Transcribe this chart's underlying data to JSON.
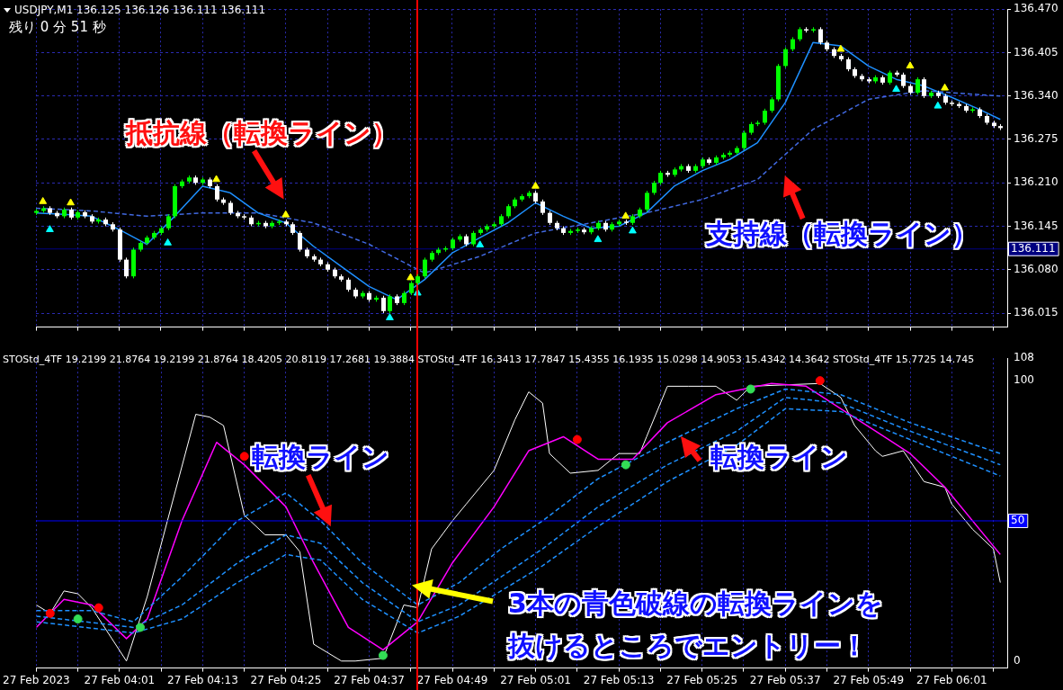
{
  "chart_data": [
    {
      "type": "candlestick",
      "title": "USDJPY,M1  136.125 136.126 136.111 136.111",
      "subtitle": "残り  0 分  51 秒",
      "annotations": [
        "抵抗線（転換ライン）",
        "支持線（転換ライン）"
      ],
      "x": [
        "2023-02-27T03:49",
        "2023-02-27T03:50",
        "2023-02-27T03:51",
        "2023-02-27T03:52",
        "2023-02-27T03:53",
        "2023-02-27T03:54",
        "2023-02-27T03:55",
        "2023-02-27T03:56",
        "2023-02-27T03:57",
        "2023-02-27T03:58",
        "2023-02-27T03:59",
        "2023-02-27T04:00",
        "2023-02-27T04:01",
        "2023-02-27T04:02",
        "2023-02-27T04:03",
        "2023-02-27T04:04",
        "2023-02-27T04:05",
        "2023-02-27T04:06",
        "2023-02-27T04:07",
        "2023-02-27T04:08",
        "2023-02-27T04:09",
        "2023-02-27T04:10",
        "2023-02-27T04:11",
        "2023-02-27T04:12",
        "2023-02-27T04:13",
        "2023-02-27T04:14",
        "2023-02-27T04:15",
        "2023-02-27T04:16",
        "2023-02-27T04:17",
        "2023-02-27T04:18",
        "2023-02-27T04:19",
        "2023-02-27T04:20",
        "2023-02-27T04:21",
        "2023-02-27T04:22",
        "2023-02-27T04:23",
        "2023-02-27T04:24",
        "2023-02-27T04:25",
        "2023-02-27T04:26",
        "2023-02-27T04:27",
        "2023-02-27T04:28",
        "2023-02-27T04:29",
        "2023-02-27T04:30",
        "2023-02-27T04:31",
        "2023-02-27T04:32",
        "2023-02-27T04:33",
        "2023-02-27T04:34",
        "2023-02-27T04:35",
        "2023-02-27T04:36",
        "2023-02-27T04:37",
        "2023-02-27T04:38",
        "2023-02-27T04:39",
        "2023-02-27T04:40",
        "2023-02-27T04:41",
        "2023-02-27T04:42",
        "2023-02-27T04:43",
        "2023-02-27T04:44",
        "2023-02-27T04:45",
        "2023-02-27T04:46",
        "2023-02-27T04:47",
        "2023-02-27T04:48",
        "2023-02-27T04:49",
        "2023-02-27T04:50",
        "2023-02-27T04:51",
        "2023-02-27T04:52",
        "2023-02-27T04:53",
        "2023-02-27T04:54",
        "2023-02-27T04:55",
        "2023-02-27T04:56",
        "2023-02-27T04:57",
        "2023-02-27T04:58",
        "2023-02-27T04:59",
        "2023-02-27T05:00",
        "2023-02-27T05:01",
        "2023-02-27T05:02",
        "2023-02-27T05:03",
        "2023-02-27T05:04",
        "2023-02-27T05:05",
        "2023-02-27T05:06",
        "2023-02-27T05:07",
        "2023-02-27T05:08",
        "2023-02-27T05:09",
        "2023-02-27T05:10",
        "2023-02-27T05:11",
        "2023-02-27T05:12",
        "2023-02-27T05:13",
        "2023-02-27T05:14",
        "2023-02-27T05:15",
        "2023-02-27T05:16",
        "2023-02-27T05:17",
        "2023-02-27T05:18",
        "2023-02-27T05:19",
        "2023-02-27T05:20",
        "2023-02-27T05:21",
        "2023-02-27T05:22",
        "2023-02-27T05:23",
        "2023-02-27T05:24",
        "2023-02-27T05:25",
        "2023-02-27T05:26",
        "2023-02-27T05:27",
        "2023-02-27T05:28",
        "2023-02-27T05:29",
        "2023-02-27T05:30",
        "2023-02-27T05:31",
        "2023-02-27T05:32",
        "2023-02-27T05:33",
        "2023-02-27T05:34",
        "2023-02-27T05:35",
        "2023-02-27T05:36",
        "2023-02-27T05:37",
        "2023-02-27T05:38",
        "2023-02-27T05:39",
        "2023-02-27T05:40",
        "2023-02-27T05:41",
        "2023-02-27T05:42",
        "2023-02-27T05:43",
        "2023-02-27T05:44",
        "2023-02-27T05:45",
        "2023-02-27T05:46",
        "2023-02-27T05:47",
        "2023-02-27T05:48",
        "2023-02-27T05:49",
        "2023-02-27T05:50",
        "2023-02-27T05:51",
        "2023-02-27T05:52",
        "2023-02-27T05:53",
        "2023-02-27T05:54",
        "2023-02-27T05:55",
        "2023-02-27T05:56",
        "2023-02-27T05:57",
        "2023-02-27T05:58",
        "2023-02-27T05:59",
        "2023-02-27T06:00",
        "2023-02-27T06:01",
        "2023-02-27T06:02",
        "2023-02-27T06:03",
        "2023-02-27T06:04",
        "2023-02-27T06:05",
        "2023-02-27T06:06",
        "2023-02-27T06:07",
        "2023-02-27T06:08"
      ],
      "ohlc": [
        [
          136.165,
          136.171,
          136.162,
          136.168
        ],
        [
          136.168,
          136.175,
          136.165,
          136.172
        ],
        [
          136.172,
          136.175,
          136.162,
          136.165
        ],
        [
          136.165,
          136.168,
          136.157,
          136.16
        ],
        [
          136.16,
          136.173,
          136.157,
          136.17
        ],
        [
          136.17,
          136.173,
          136.155,
          136.158
        ],
        [
          136.158,
          136.169,
          136.155,
          136.166
        ],
        [
          136.166,
          136.169,
          136.157,
          136.16
        ],
        [
          136.16,
          136.163,
          136.149,
          136.152
        ],
        [
          136.152,
          136.158,
          136.149,
          136.155
        ],
        [
          136.155,
          136.158,
          136.145,
          136.148
        ],
        [
          136.148,
          136.151,
          136.137,
          136.14
        ],
        [
          136.14,
          136.143,
          136.092,
          136.095
        ],
        [
          136.095,
          136.098,
          136.067,
          136.07
        ],
        [
          136.07,
          136.113,
          136.067,
          136.11
        ],
        [
          136.11,
          136.123,
          136.107,
          136.12
        ],
        [
          136.12,
          136.131,
          136.117,
          136.128
        ],
        [
          136.128,
          136.138,
          136.125,
          136.135
        ],
        [
          136.135,
          136.145,
          136.132,
          136.142
        ],
        [
          136.142,
          136.163,
          136.139,
          136.16
        ],
        [
          136.16,
          136.208,
          136.157,
          136.205
        ],
        [
          136.205,
          136.215,
          136.202,
          136.212
        ],
        [
          136.212,
          136.221,
          136.209,
          136.218
        ],
        [
          136.218,
          136.221,
          136.207,
          136.21
        ],
        [
          136.21,
          136.218,
          136.207,
          136.215
        ],
        [
          136.215,
          136.218,
          136.202,
          136.205
        ],
        [
          136.205,
          136.208,
          136.182,
          136.185
        ],
        [
          136.185,
          136.188,
          136.177,
          136.18
        ],
        [
          136.18,
          136.183,
          136.162,
          136.165
        ],
        [
          136.165,
          136.168,
          136.157,
          136.16
        ],
        [
          136.16,
          136.163,
          136.155,
          136.158
        ],
        [
          136.158,
          136.161,
          136.145,
          136.148
        ],
        [
          136.148,
          136.153,
          136.145,
          136.15
        ],
        [
          136.15,
          136.153,
          136.142,
          136.145
        ],
        [
          136.145,
          136.153,
          136.142,
          136.15
        ],
        [
          136.15,
          136.155,
          136.147,
          136.152
        ],
        [
          136.152,
          136.155,
          136.145,
          136.148
        ],
        [
          136.148,
          136.151,
          136.132,
          136.135
        ],
        [
          136.135,
          136.138,
          136.107,
          136.11
        ],
        [
          136.11,
          136.113,
          136.097,
          136.1
        ],
        [
          136.1,
          136.103,
          136.092,
          136.095
        ],
        [
          136.095,
          136.098,
          136.085,
          136.088
        ],
        [
          136.088,
          136.091,
          136.077,
          136.08
        ],
        [
          136.08,
          136.083,
          136.067,
          136.07
        ],
        [
          136.07,
          136.073,
          136.062,
          136.065
        ],
        [
          136.065,
          136.068,
          136.047,
          136.05
        ],
        [
          136.05,
          136.053,
          136.037,
          136.04
        ],
        [
          136.04,
          136.048,
          136.037,
          136.045
        ],
        [
          136.045,
          136.048,
          136.032,
          136.035
        ],
        [
          136.035,
          136.041,
          136.032,
          136.038
        ],
        [
          136.038,
          136.041,
          136.015,
          136.018
        ],
        [
          136.018,
          136.043,
          136.015,
          136.04
        ],
        [
          136.04,
          136.043,
          136.027,
          136.03
        ],
        [
          136.03,
          136.048,
          136.027,
          136.045
        ],
        [
          136.045,
          136.063,
          136.042,
          136.06
        ],
        [
          136.06,
          136.073,
          136.057,
          136.07
        ],
        [
          136.07,
          136.098,
          136.067,
          136.095
        ],
        [
          136.095,
          136.108,
          136.092,
          136.105
        ],
        [
          136.105,
          136.113,
          136.102,
          136.11
        ],
        [
          136.11,
          136.115,
          136.107,
          136.112
        ],
        [
          136.112,
          136.128,
          136.109,
          136.125
        ],
        [
          136.125,
          136.133,
          136.122,
          136.13
        ],
        [
          136.13,
          136.133,
          136.115,
          136.118
        ],
        [
          136.118,
          136.138,
          136.115,
          136.135
        ],
        [
          136.135,
          136.143,
          136.132,
          136.14
        ],
        [
          136.14,
          136.148,
          136.137,
          136.145
        ],
        [
          136.145,
          136.151,
          136.142,
          136.148
        ],
        [
          136.148,
          136.163,
          136.145,
          136.16
        ],
        [
          136.16,
          136.178,
          136.157,
          136.175
        ],
        [
          136.175,
          136.188,
          136.172,
          136.185
        ],
        [
          136.185,
          136.193,
          136.182,
          136.19
        ],
        [
          136.19,
          136.198,
          136.187,
          136.195
        ],
        [
          136.195,
          136.198,
          136.179,
          136.182
        ],
        [
          136.182,
          136.185,
          136.162,
          136.165
        ],
        [
          136.165,
          136.168,
          136.147,
          136.15
        ],
        [
          136.15,
          136.153,
          136.139,
          136.142
        ],
        [
          136.142,
          136.145,
          136.132,
          136.135
        ],
        [
          136.135,
          136.141,
          136.132,
          136.138
        ],
        [
          136.138,
          136.143,
          136.135,
          136.14
        ],
        [
          136.14,
          136.143,
          136.133,
          136.136
        ],
        [
          136.136,
          136.145,
          136.133,
          136.142
        ],
        [
          136.142,
          136.153,
          136.139,
          136.15
        ],
        [
          136.15,
          136.153,
          136.137,
          136.14
        ],
        [
          136.14,
          136.151,
          136.137,
          136.148
        ],
        [
          136.148,
          136.155,
          136.145,
          136.152
        ],
        [
          136.152,
          136.155,
          136.147,
          136.15
        ],
        [
          136.15,
          136.163,
          136.147,
          136.16
        ],
        [
          136.16,
          136.173,
          136.157,
          136.17
        ],
        [
          136.17,
          136.198,
          136.167,
          136.195
        ],
        [
          136.195,
          136.213,
          136.192,
          136.21
        ],
        [
          136.21,
          136.228,
          136.207,
          136.225
        ],
        [
          136.225,
          136.228,
          136.219,
          136.222
        ],
        [
          136.222,
          136.233,
          136.219,
          136.23
        ],
        [
          136.23,
          136.238,
          136.227,
          136.235
        ],
        [
          136.235,
          136.238,
          136.225,
          136.228
        ],
        [
          136.228,
          136.238,
          136.225,
          136.235
        ],
        [
          136.235,
          136.248,
          136.232,
          136.245
        ],
        [
          136.245,
          136.248,
          136.237,
          136.24
        ],
        [
          136.24,
          136.251,
          136.237,
          136.248
        ],
        [
          136.248,
          136.255,
          136.245,
          136.252
        ],
        [
          136.252,
          136.258,
          136.249,
          136.255
        ],
        [
          136.255,
          136.265,
          136.252,
          136.262
        ],
        [
          136.262,
          136.288,
          136.259,
          136.285
        ],
        [
          136.285,
          136.301,
          136.282,
          136.298
        ],
        [
          136.298,
          136.303,
          136.295,
          136.3
        ],
        [
          136.3,
          136.321,
          136.297,
          136.318
        ],
        [
          136.318,
          136.338,
          136.315,
          136.335
        ],
        [
          136.335,
          136.388,
          136.332,
          136.385
        ],
        [
          136.385,
          136.413,
          136.382,
          136.41
        ],
        [
          136.41,
          136.428,
          136.407,
          136.425
        ],
        [
          136.425,
          136.443,
          136.422,
          136.44
        ],
        [
          136.44,
          136.443,
          136.435,
          136.438
        ],
        [
          136.438,
          136.443,
          136.435,
          136.44
        ],
        [
          136.44,
          136.443,
          136.417,
          136.42
        ],
        [
          136.42,
          136.423,
          136.407,
          136.41
        ],
        [
          136.41,
          136.413,
          136.397,
          136.4
        ],
        [
          136.4,
          136.403,
          136.392,
          136.395
        ],
        [
          136.395,
          136.398,
          136.377,
          136.38
        ],
        [
          136.38,
          136.383,
          136.367,
          136.37
        ],
        [
          136.37,
          136.373,
          136.362,
          136.365
        ],
        [
          136.365,
          136.368,
          136.359,
          136.362
        ],
        [
          136.362,
          136.371,
          136.359,
          136.368
        ],
        [
          136.368,
          136.371,
          136.357,
          136.36
        ],
        [
          136.36,
          136.378,
          136.357,
          136.375
        ],
        [
          136.375,
          136.378,
          136.369,
          136.372
        ],
        [
          136.372,
          136.375,
          136.352,
          136.355
        ],
        [
          136.355,
          136.358,
          136.342,
          136.345
        ],
        [
          136.345,
          136.368,
          136.342,
          136.365
        ],
        [
          136.365,
          136.368,
          136.337,
          136.34
        ],
        [
          136.34,
          136.348,
          136.337,
          136.345
        ],
        [
          136.345,
          136.348,
          136.337,
          136.34
        ],
        [
          136.34,
          136.343,
          136.327,
          136.33
        ],
        [
          136.33,
          136.333,
          136.325,
          136.328
        ],
        [
          136.328,
          136.331,
          136.322,
          136.325
        ],
        [
          136.325,
          136.328,
          136.315,
          136.318
        ],
        [
          136.318,
          136.323,
          136.315,
          136.32
        ],
        [
          136.32,
          136.323,
          136.307,
          136.31
        ],
        [
          136.31,
          136.313,
          136.297,
          136.3
        ],
        [
          136.3,
          136.303,
          136.292,
          136.295
        ],
        [
          136.295,
          136.298,
          136.289,
          136.292
        ]
      ],
      "colors": [
        "#00ff00",
        "#00ff00",
        "#ffffff",
        "#ffffff",
        "#00ff00",
        "#ffffff",
        "#00ff00",
        "#ffffff",
        "#ffffff",
        "#00ff00",
        "#ffffff",
        "#ffffff",
        "#ffffff",
        "#ffffff",
        "#00ff00",
        "#00ff00",
        "#00ff00",
        "#00ff00",
        "#00ff00",
        "#00ff00",
        "#00ff00",
        "#00ff00",
        "#00ff00",
        "#ffffff",
        "#00ff00",
        "#ffffff",
        "#ffffff",
        "#ffffff",
        "#ffffff",
        "#ffffff",
        "#ffffff",
        "#ffffff",
        "#00ff00",
        "#ffffff",
        "#00ff00",
        "#00ff00",
        "#ffffff",
        "#ffffff",
        "#ffffff",
        "#ffffff",
        "#ffffff",
        "#ffffff",
        "#ffffff",
        "#ffffff",
        "#ffffff",
        "#ffffff",
        "#ffffff",
        "#00ff00",
        "#ffffff",
        "#00ff00",
        "#ffffff",
        "#00ff00",
        "#ffffff",
        "#00ff00",
        "#00ff00",
        "#00ff00",
        "#00ff00",
        "#00ff00",
        "#00ff00",
        "#00ff00",
        "#00ff00",
        "#00ff00",
        "#ffffff",
        "#00ff00",
        "#00ff00",
        "#00ff00",
        "#00ff00",
        "#00ff00",
        "#00ff00",
        "#00ff00",
        "#00ff00",
        "#00ff00",
        "#ffffff",
        "#ffffff",
        "#ffffff",
        "#ffffff",
        "#ffffff",
        "#00ff00",
        "#00ff00",
        "#ffffff",
        "#00ff00",
        "#00ff00",
        "#ffffff",
        "#00ff00",
        "#00ff00",
        "#ffffff",
        "#00ff00",
        "#00ff00",
        "#00ff00",
        "#00ff00",
        "#00ff00",
        "#ffffff",
        "#00ff00",
        "#00ff00",
        "#ffffff",
        "#00ff00",
        "#00ff00",
        "#ffffff",
        "#00ff00",
        "#00ff00",
        "#00ff00",
        "#00ff00",
        "#00ff00",
        "#00ff00",
        "#00ff00",
        "#00ff00",
        "#00ff00",
        "#00ff00",
        "#00ff00",
        "#00ff00",
        "#00ff00",
        "#ffffff",
        "#00ff00",
        "#ffffff",
        "#ffffff",
        "#ffffff",
        "#ffffff",
        "#ffffff",
        "#ffffff",
        "#ffffff",
        "#ffffff",
        "#00ff00",
        "#ffffff",
        "#00ff00",
        "#ffffff",
        "#ffffff",
        "#ffffff",
        "#00ff00",
        "#ffffff",
        "#00ff00",
        "#ffffff",
        "#ffffff",
        "#ffffff",
        "#ffffff",
        "#ffffff",
        "#00ff00",
        "#ffffff",
        "#ffffff",
        "#ffffff",
        "#ffffff"
      ],
      "series": [
        {
          "type": "line",
          "color": "#1e90ff",
          "x": [
            "2023-02-27T03:49",
            "2023-02-27T03:53",
            "2023-02-27T03:57",
            "2023-02-27T04:01",
            "2023-02-27T04:05",
            "2023-02-27T04:09",
            "2023-02-27T04:13",
            "2023-02-27T04:17",
            "2023-02-27T04:21",
            "2023-02-27T04:25",
            "2023-02-27T04:29",
            "2023-02-27T04:33",
            "2023-02-27T04:37",
            "2023-02-27T04:41",
            "2023-02-27T04:45",
            "2023-02-27T04:49",
            "2023-02-27T04:53",
            "2023-02-27T04:57",
            "2023-02-27T05:01",
            "2023-02-27T05:05",
            "2023-02-27T05:09",
            "2023-02-27T05:13",
            "2023-02-27T05:17",
            "2023-02-27T05:21",
            "2023-02-27T05:25",
            "2023-02-27T05:29",
            "2023-02-27T05:33",
            "2023-02-27T05:37",
            "2023-02-27T05:41",
            "2023-02-27T05:45",
            "2023-02-27T05:49",
            "2023-02-27T05:53",
            "2023-02-27T05:57",
            "2023-02-27T06:01",
            "2023-02-27T06:05",
            "2023-02-27T06:08"
          ],
          "values": [
            136.165,
            136.163,
            136.16,
            136.14,
            136.118,
            136.16,
            136.205,
            136.195,
            136.165,
            136.15,
            136.115,
            136.085,
            136.055,
            136.035,
            136.065,
            136.105,
            136.128,
            136.15,
            136.18,
            136.16,
            136.142,
            136.145,
            136.165,
            136.205,
            136.228,
            136.245,
            136.27,
            136.33,
            136.42,
            136.415,
            136.385,
            136.365,
            136.355,
            136.338,
            136.32,
            136.305
          ]
        },
        {
          "type": "line",
          "color": "#4169e1",
          "line_style": "dashed",
          "x": [
            "2023-02-27T03:49",
            "2023-02-27T03:57",
            "2023-02-27T04:05",
            "2023-02-27T04:13",
            "2023-02-27T04:21",
            "2023-02-27T04:29",
            "2023-02-27T04:37",
            "2023-02-27T04:45",
            "2023-02-27T04:53",
            "2023-02-27T05:01",
            "2023-02-27T05:09",
            "2023-02-27T05:17",
            "2023-02-27T05:25",
            "2023-02-27T05:33",
            "2023-02-27T05:41",
            "2023-02-27T05:49",
            "2023-02-27T05:57",
            "2023-02-27T06:05",
            "2023-02-27T06:08"
          ],
          "values": [
            136.172,
            136.168,
            136.16,
            136.165,
            136.165,
            136.15,
            136.118,
            136.075,
            136.1,
            136.135,
            136.15,
            136.165,
            136.185,
            136.215,
            136.29,
            136.335,
            136.348,
            136.342,
            136.34
          ]
        },
        {
          "type": "scatter",
          "color": "#ffff00",
          "marker": "triangle",
          "x": [
            "2023-02-27T03:50",
            "2023-02-27T03:54",
            "2023-02-27T04:15",
            "2023-02-27T04:25",
            "2023-02-27T04:43",
            "2023-02-27T05:01",
            "2023-02-27T05:14",
            "2023-02-27T05:45",
            "2023-02-27T05:55",
            "2023-02-27T06:00"
          ],
          "values": [
            136.182,
            136.18,
            136.215,
            136.162,
            136.068,
            136.205,
            136.16,
            136.41,
            136.385,
            136.352
          ]
        },
        {
          "type": "scatter",
          "color": "#00ffff",
          "marker": "triangle",
          "x": [
            "2023-02-27T03:51",
            "2023-02-27T04:08",
            "2023-02-27T04:40",
            "2023-02-27T04:44",
            "2023-02-27T04:53",
            "2023-02-27T05:10",
            "2023-02-27T05:15",
            "2023-02-27T05:53",
            "2023-02-27T05:59"
          ],
          "values": [
            136.14,
            136.12,
            136.008,
            136.045,
            136.117,
            136.125,
            136.138,
            136.35,
            136.325
          ]
        }
      ],
      "xlim": [
        "2023-02-27T03:49",
        "2023-02-27T06:09"
      ],
      "xticks": [
        {
          "value": "2023-02-27T03:49",
          "label": null
        },
        {
          "value": "2023-02-27T03:55",
          "label": null
        },
        {
          "value": "2023-02-27T04:01",
          "label": null
        },
        {
          "value": "2023-02-27T04:07",
          "label": null
        },
        {
          "value": "2023-02-27T04:13",
          "label": null
        },
        {
          "value": "2023-02-27T04:19",
          "label": null
        },
        {
          "value": "2023-02-27T04:25",
          "label": null
        },
        {
          "value": "2023-02-27T04:31",
          "label": null
        },
        {
          "value": "2023-02-27T04:37",
          "label": null
        },
        {
          "value": "2023-02-27T04:43",
          "label": null
        },
        {
          "value": "2023-02-27T04:49",
          "label": null
        },
        {
          "value": "2023-02-27T04:55",
          "label": null
        },
        {
          "value": "2023-02-27T05:01",
          "label": null
        },
        {
          "value": "2023-02-27T05:07",
          "label": null
        },
        {
          "value": "2023-02-27T05:13",
          "label": null
        },
        {
          "value": "2023-02-27T05:19",
          "label": null
        },
        {
          "value": "2023-02-27T05:25",
          "label": null
        },
        {
          "value": "2023-02-27T05:31",
          "label": null
        },
        {
          "value": "2023-02-27T05:37",
          "label": null
        },
        {
          "value": "2023-02-27T05:43",
          "label": null
        },
        {
          "value": "2023-02-27T05:49",
          "label": null
        },
        {
          "value": "2023-02-27T05:55",
          "label": null
        },
        {
          "value": "2023-02-27T06:01",
          "label": null
        },
        {
          "value": "2023-02-27T06:07",
          "label": null
        }
      ],
      "ylim": [
        135.994,
        136.47
      ],
      "yticks": [
        136.015,
        {
          "value": 136.08,
          "label": "136.080"
        },
        136.145,
        {
          "value": 136.21,
          "label": "136.210"
        },
        136.275,
        {
          "value": 136.34,
          "label": "136.340"
        },
        136.405,
        {
          "value": 136.47,
          "label": "136.470"
        }
      ],
      "grid": true,
      "tick_labels": "y",
      "ref_lines": [
        {
          "axis": "x",
          "value": "2023-02-27T04:44",
          "color": "#ff0000"
        },
        {
          "axis": "y",
          "value": 136.111,
          "label": "136.111",
          "color": "#000080"
        }
      ]
    },
    {
      "type": "line",
      "title": "STOStd_4TF 19.2199 21.8764 19.2199 21.8764 18.4205 20.8119 17.2681 19.3884  STOStd_4TF 16.3413 17.7847 15.4355 16.1935 15.0298 14.9053 15.4342 14.3642  STOStd_4TF 15.7725 14.745",
      "annotations": [
        "転換ライン",
        "転換ライン",
        "3本の青色破線の転換ラインを",
        "抜けるところでエントリー！"
      ],
      "series": [
        {
          "type": "line",
          "color": "#1e90ff",
          "line_style": "dashed",
          "x": [
            "2023-02-27T03:49",
            "2023-02-27T03:57",
            "2023-02-27T04:03",
            "2023-02-27T04:10",
            "2023-02-27T04:18",
            "2023-02-27T04:25",
            "2023-02-27T04:30",
            "2023-02-27T04:36",
            "2023-02-27T04:44",
            "2023-02-27T04:50",
            "2023-02-27T04:56",
            "2023-02-27T05:02",
            "2023-02-27T05:10",
            "2023-02-27T05:20",
            "2023-02-27T05:30",
            "2023-02-27T05:37",
            "2023-02-27T05:45",
            "2023-02-27T05:55",
            "2023-02-27T06:08"
          ],
          "values": [
            18,
            18,
            14,
            30,
            50,
            60,
            50,
            35,
            20,
            28,
            40,
            50,
            65,
            78,
            90,
            97,
            95,
            85,
            74
          ]
        },
        {
          "type": "line",
          "color": "#1e90ff",
          "line_style": "dashed",
          "x": [
            "2023-02-27T03:49",
            "2023-02-27T04:03",
            "2023-02-27T04:10",
            "2023-02-27T04:18",
            "2023-02-27T04:25",
            "2023-02-27T04:30",
            "2023-02-27T04:36",
            "2023-02-27T04:44",
            "2023-02-27T04:50",
            "2023-02-27T04:56",
            "2023-02-27T05:02",
            "2023-02-27T05:10",
            "2023-02-27T05:20",
            "2023-02-27T05:30",
            "2023-02-27T05:37",
            "2023-02-27T05:45",
            "2023-02-27T05:55",
            "2023-02-27T06:08"
          ],
          "values": [
            16,
            12,
            20,
            35,
            45,
            42,
            28,
            14,
            20,
            30,
            40,
            55,
            70,
            82,
            94,
            92,
            82,
            70
          ]
        },
        {
          "type": "line",
          "color": "#1e90ff",
          "line_style": "dashed",
          "x": [
            "2023-02-27T03:49",
            "2023-02-27T04:03",
            "2023-02-27T04:10",
            "2023-02-27T04:18",
            "2023-02-27T04:25",
            "2023-02-27T04:30",
            "2023-02-27T04:36",
            "2023-02-27T04:44",
            "2023-02-27T04:50",
            "2023-02-27T04:56",
            "2023-02-27T05:02",
            "2023-02-27T05:10",
            "2023-02-27T05:20",
            "2023-02-27T05:30",
            "2023-02-27T05:37",
            "2023-02-27T05:45",
            "2023-02-27T05:55",
            "2023-02-27T06:08"
          ],
          "values": [
            14,
            10,
            15,
            28,
            38,
            36,
            22,
            10,
            16,
            25,
            34,
            48,
            64,
            77,
            90,
            89,
            79,
            66
          ]
        },
        {
          "type": "line",
          "color": "#ff00ff",
          "x": [
            "2023-02-27T03:49",
            "2023-02-27T03:53",
            "2023-02-27T03:57",
            "2023-02-27T04:02",
            "2023-02-27T04:05",
            "2023-02-27T04:10",
            "2023-02-27T04:15",
            "2023-02-27T04:19",
            "2023-02-27T04:25",
            "2023-02-27T04:29",
            "2023-02-27T04:34",
            "2023-02-27T04:39",
            "2023-02-27T04:44",
            "2023-02-27T04:49",
            "2023-02-27T04:55",
            "2023-02-27T05:00",
            "2023-02-27T05:05",
            "2023-02-27T05:10",
            "2023-02-27T05:15",
            "2023-02-27T05:20",
            "2023-02-27T05:27",
            "2023-02-27T05:35",
            "2023-02-27T05:40",
            "2023-02-27T05:45",
            "2023-02-27T05:50",
            "2023-02-27T05:55",
            "2023-02-27T06:00",
            "2023-02-27T06:08"
          ],
          "values": [
            12,
            22,
            20,
            8,
            15,
            50,
            78,
            70,
            55,
            35,
            12,
            4,
            14,
            35,
            55,
            75,
            80,
            72,
            72,
            85,
            95,
            99,
            98,
            90,
            82,
            74,
            62,
            38
          ]
        },
        {
          "type": "line",
          "color": "#ffffff",
          "x": [
            "2023-02-27T03:49",
            "2023-02-27T03:51",
            "2023-02-27T03:53",
            "2023-02-27T03:55",
            "2023-02-27T03:57",
            "2023-02-27T04:02",
            "2023-02-27T04:05",
            "2023-02-27T04:12",
            "2023-02-27T04:14",
            "2023-02-27T04:16",
            "2023-02-27T04:19",
            "2023-02-27T04:22",
            "2023-02-27T04:25",
            "2023-02-27T04:27",
            "2023-02-27T04:29",
            "2023-02-27T04:33",
            "2023-02-27T04:35",
            "2023-02-27T04:39",
            "2023-02-27T04:42",
            "2023-02-27T04:44",
            "2023-02-27T04:46",
            "2023-02-27T04:49",
            "2023-02-27T04:51",
            "2023-02-27T04:53",
            "2023-02-27T04:55",
            "2023-02-27T04:58",
            "2023-02-27T05:00",
            "2023-02-27T05:02",
            "2023-02-27T05:03",
            "2023-02-27T05:06",
            "2023-02-27T05:10",
            "2023-02-27T05:13",
            "2023-02-27T05:16",
            "2023-02-27T05:17",
            "2023-02-27T05:20",
            "2023-02-27T05:23",
            "2023-02-27T05:27",
            "2023-02-27T05:30",
            "2023-02-27T05:32",
            "2023-02-27T05:42",
            "2023-02-27T05:45",
            "2023-02-27T05:47",
            "2023-02-27T05:50",
            "2023-02-27T05:51",
            "2023-02-27T05:54",
            "2023-02-27T05:57",
            "2023-02-27T06:00",
            "2023-02-27T06:01",
            "2023-02-27T06:04",
            "2023-02-27T06:07",
            "2023-02-27T06:08"
          ],
          "values": [
            20,
            17,
            25,
            24,
            19,
            0,
            23,
            88,
            87,
            84,
            52,
            45,
            45,
            39,
            6,
            0,
            0,
            1,
            20,
            19,
            40,
            50,
            56,
            62,
            68,
            86,
            96,
            92,
            74,
            67,
            68,
            74,
            74,
            80,
            98,
            98,
            98,
            93,
            98,
            99,
            94,
            84,
            75,
            73,
            75,
            64,
            62,
            56,
            47,
            40,
            28
          ]
        },
        {
          "type": "scatter",
          "color": "#ff0000",
          "marker": "circle",
          "x": [
            "2023-02-27T03:51",
            "2023-02-27T03:58",
            "2023-02-27T04:19",
            "2023-02-27T05:07",
            "2023-02-27T05:42"
          ],
          "values": [
            17,
            19,
            73,
            79,
            100
          ]
        },
        {
          "type": "scatter",
          "color": "#33dd55",
          "marker": "circle",
          "x": [
            "2023-02-27T03:55",
            "2023-02-27T04:04",
            "2023-02-27T04:39",
            "2023-02-27T05:14",
            "2023-02-27T05:32"
          ],
          "values": [
            15,
            12,
            2,
            70,
            97
          ]
        }
      ],
      "xlim": [
        "2023-02-27T03:49",
        "2023-02-27T06:09"
      ],
      "xticks": [
        {
          "value": "2023-02-27T03:49",
          "label": "27 Feb 2023"
        },
        {
          "value": "2023-02-27T03:55",
          "label": null
        },
        {
          "value": "2023-02-27T04:01",
          "label": "27 Feb 04:01"
        },
        {
          "value": "2023-02-27T04:07",
          "label": null
        },
        {
          "value": "2023-02-27T04:13",
          "label": "27 Feb 04:13"
        },
        {
          "value": "2023-02-27T04:19",
          "label": null
        },
        {
          "value": "2023-02-27T04:25",
          "label": "27 Feb 04:25"
        },
        {
          "value": "2023-02-27T04:31",
          "label": null
        },
        {
          "value": "2023-02-27T04:37",
          "label": "27 Feb 04:37"
        },
        {
          "value": "2023-02-27T04:43",
          "label": null
        },
        {
          "value": "2023-02-27T04:49",
          "label": "27 Feb 04:49"
        },
        {
          "value": "2023-02-27T04:55",
          "label": null
        },
        {
          "value": "2023-02-27T05:01",
          "label": "27 Feb 05:01"
        },
        {
          "value": "2023-02-27T05:07",
          "label": null
        },
        {
          "value": "2023-02-27T05:13",
          "label": "27 Feb 05:13"
        },
        {
          "value": "2023-02-27T05:19",
          "label": null
        },
        {
          "value": "2023-02-27T05:25",
          "label": "27 Feb 05:25"
        },
        {
          "value": "2023-02-27T05:31",
          "label": null
        },
        {
          "value": "2023-02-27T05:37",
          "label": "27 Feb 05:37"
        },
        {
          "value": "2023-02-27T05:43",
          "label": null
        },
        {
          "value": "2023-02-27T05:49",
          "label": "27 Feb 05:49"
        },
        {
          "value": "2023-02-27T05:55",
          "label": null
        },
        {
          "value": "2023-02-27T06:01",
          "label": "27 Feb 06:01"
        },
        {
          "value": "2023-02-27T06:07",
          "label": null
        }
      ],
      "ylim": [
        -2.5,
        108
      ],
      "yticks": [
        0,
        100,
        108
      ],
      "grid": "x",
      "ref_lines": [
        {
          "axis": "y",
          "value": 50,
          "label": "50",
          "color": "#0000ff"
        },
        {
          "axis": "x",
          "value": "2023-02-27T04:44",
          "color": "#ff0000"
        }
      ]
    }
  ]
}
